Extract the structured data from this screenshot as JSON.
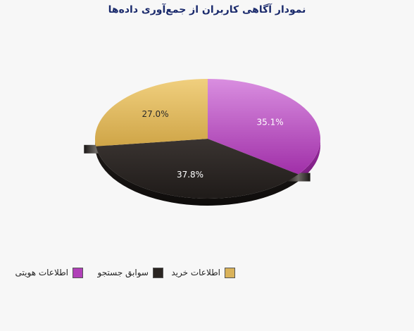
{
  "chart_data": {
    "type": "pie",
    "title": "نمودار آگاهی کاربران از جمع‌آوری  داده‌ها",
    "legend_placement": "bottom-left",
    "slices": [
      {
        "label": "اطلاعات هویتی",
        "value": 35.1,
        "value_label": "35.1%",
        "color": "#b040b8"
      },
      {
        "label": "سوابق جستجو",
        "value": 37.8,
        "value_label": "37.8%",
        "color": "#2a2522"
      },
      {
        "label": "اطلاعات خرید",
        "value": 27.0,
        "value_label": "27.0%",
        "color": "#d9b25a"
      }
    ]
  }
}
